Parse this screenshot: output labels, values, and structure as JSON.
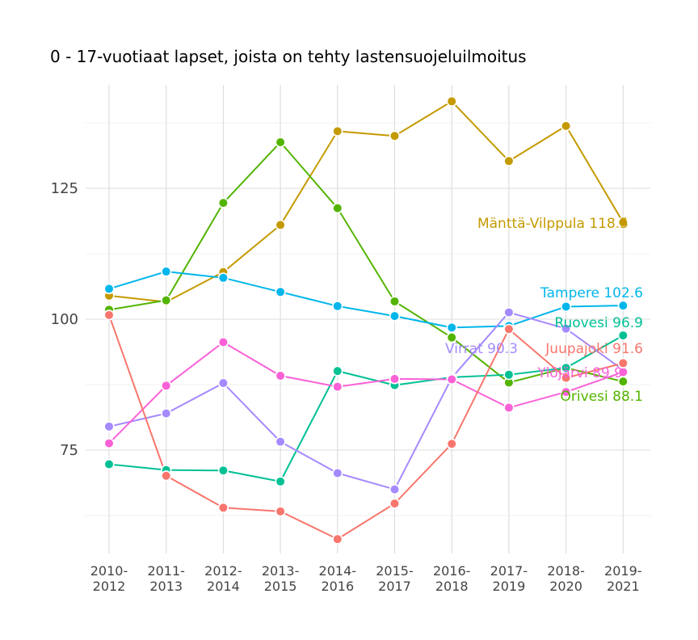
{
  "chart_data": {
    "type": "line",
    "title": "0 - 17-vuotiaat lapset, joista on tehty lastensuojeluilmoitus",
    "xlabel": "",
    "ylabel": "",
    "ylim": [
      61,
      147
    ],
    "yticks": [
      75,
      100,
      125
    ],
    "grid": true,
    "x": [
      "2010-\n2012",
      "2011-\n2013",
      "2012-\n2014",
      "2013-\n2015",
      "2014-\n2016",
      "2015-\n2017",
      "2016-\n2018",
      "2017-\n2019",
      "2018-\n2020",
      "2019-\n2021"
    ],
    "series": [
      {
        "name": "Mänttä-Vilppula",
        "end_label": "Mänttä-Vilppula 118.5",
        "color": "#C49A00",
        "values": [
          104.5,
          103.3,
          109,
          118,
          135.9,
          135,
          141.6,
          130.2,
          136.9,
          118.5
        ]
      },
      {
        "name": "Orivesi",
        "end_label": "Orivesi 88.1",
        "color": "#53B400",
        "values": [
          101.8,
          103.6,
          122.2,
          133.8,
          121.2,
          103.4,
          96.5,
          87.9,
          90.7,
          88.1
        ]
      },
      {
        "name": "Ruovesi",
        "end_label": "Ruovesi 96.9",
        "color": "#00C094",
        "values": [
          72.3,
          71.2,
          71.1,
          69,
          90.1,
          87.4,
          88.9,
          89.4,
          90.7,
          96.9
        ]
      },
      {
        "name": "Tampere",
        "end_label": "Tampere 102.6",
        "color": "#00B6EB",
        "values": [
          105.8,
          109.1,
          107.9,
          105.2,
          102.5,
          100.6,
          98.4,
          98.7,
          102.4,
          102.6
        ]
      },
      {
        "name": "Virrat",
        "end_label": "Virrat 90.3",
        "color": "#A58AFF",
        "values": [
          79.5,
          82,
          87.8,
          76.6,
          70.6,
          67.5,
          88.8,
          101.3,
          98.2,
          90.3
        ]
      },
      {
        "name": "Ylöjärvi",
        "end_label": "Ylöjärvi 89.9",
        "color": "#FB61D7",
        "values": [
          76.3,
          87.3,
          95.6,
          89.2,
          87.1,
          88.6,
          88.5,
          83.1,
          86.1,
          89.9
        ]
      },
      {
        "name": "Juupajoki",
        "end_label": "Juupajoki 91.6",
        "color": "#F8766D",
        "values": [
          100.8,
          70.1,
          64,
          63.3,
          58,
          64.8,
          76.2,
          98.1,
          88.8,
          91.6
        ]
      }
    ]
  }
}
